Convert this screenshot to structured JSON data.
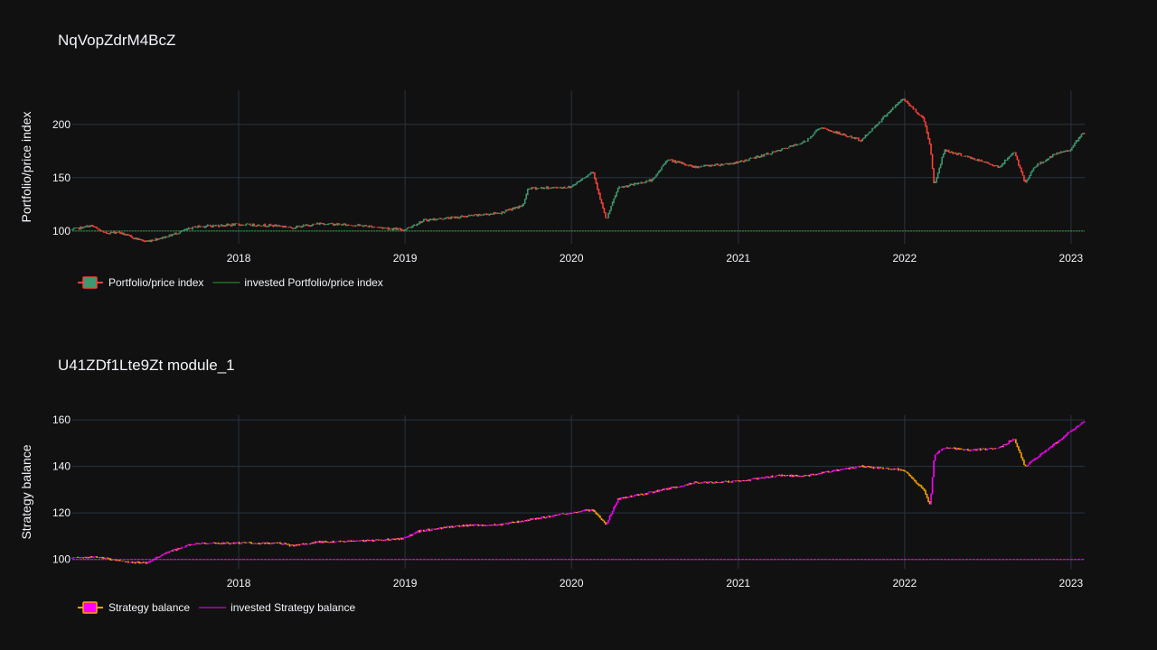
{
  "charts": [
    {
      "title": "NqVopZdrM4BcZ",
      "ylabel": "Portfolio/price index",
      "legend": [
        "Portfolio/price index",
        "invested Portfolio/price index"
      ],
      "colors": {
        "up": "#3d9970",
        "down": "#ff4136",
        "invested": "#2ca02c"
      }
    },
    {
      "title": "U41ZDf1Lte9Zt module_1",
      "ylabel": "Strategy balance",
      "legend": [
        "Strategy balance",
        "invested Strategy balance"
      ],
      "colors": {
        "up": "#ff00ff",
        "down": "#ffa500",
        "invested": "#ff00ff"
      }
    }
  ],
  "chart_data": [
    {
      "type": "candlestick",
      "title": "NqVopZdrM4BcZ",
      "ylabel": "Portfolio/price index",
      "xlim": [
        "2017-01-01",
        "2023-01-31"
      ],
      "ylim": [
        88,
        232
      ],
      "x_ticks": [
        "2018",
        "2019",
        "2020",
        "2021",
        "2022",
        "2023"
      ],
      "y_ticks": [
        100,
        150,
        200
      ],
      "grid": true,
      "legend_position": "bottom-left",
      "series": [
        {
          "name": "Portfolio/price index",
          "x": [
            "2017-01-01",
            "2017-02-15",
            "2017-03-15",
            "2017-04-15",
            "2017-05-15",
            "2017-06-15",
            "2017-08-01",
            "2017-10-01",
            "2018-01-01",
            "2018-04-01",
            "2018-05-01",
            "2018-07-01",
            "2018-10-01",
            "2019-01-01",
            "2019-02-15",
            "2019-05-01",
            "2019-08-01",
            "2019-09-20",
            "2019-10-01",
            "2020-01-01",
            "2020-02-20",
            "2020-03-20",
            "2020-04-15",
            "2020-07-01",
            "2020-08-01",
            "2020-10-01",
            "2021-01-01",
            "2021-04-01",
            "2021-06-01",
            "2021-07-01",
            "2021-10-01",
            "2021-12-01",
            "2022-01-01",
            "2022-02-15",
            "2022-03-01",
            "2022-03-10",
            "2022-04-01",
            "2022-06-01",
            "2022-08-01",
            "2022-09-01",
            "2022-09-25",
            "2022-10-15",
            "2022-12-01",
            "2023-01-01",
            "2023-01-31"
          ],
          "y": [
            101,
            105,
            98,
            99,
            94,
            90,
            95,
            104,
            106,
            105,
            103,
            107,
            105,
            101,
            110,
            113,
            117,
            124,
            140,
            141,
            156,
            110,
            140,
            148,
            167,
            160,
            164,
            175,
            184,
            197,
            185,
            212,
            224,
            205,
            180,
            142,
            176,
            168,
            160,
            175,
            145,
            160,
            172,
            176,
            192
          ]
        },
        {
          "name": "invested Portfolio/price index",
          "x": [
            "2017-01-01",
            "2023-01-31"
          ],
          "y": [
            100,
            100
          ]
        }
      ]
    },
    {
      "type": "candlestick",
      "title": "U41ZDf1Lte9Zt module_1",
      "ylabel": "Strategy balance",
      "xlim": [
        "2017-01-01",
        "2023-01-31"
      ],
      "ylim": [
        96,
        162
      ],
      "x_ticks": [
        "2018",
        "2019",
        "2020",
        "2021",
        "2022",
        "2023"
      ],
      "y_ticks": [
        100,
        120,
        140,
        160
      ],
      "grid": true,
      "legend_position": "bottom-left",
      "series": [
        {
          "name": "Strategy balance",
          "x": [
            "2017-01-01",
            "2017-03-01",
            "2017-05-01",
            "2017-06-15",
            "2017-08-01",
            "2017-10-01",
            "2018-01-01",
            "2018-04-01",
            "2018-05-01",
            "2018-07-01",
            "2018-10-01",
            "2019-01-01",
            "2019-02-01",
            "2019-05-01",
            "2019-08-01",
            "2019-10-01",
            "2020-01-01",
            "2020-02-20",
            "2020-03-20",
            "2020-04-15",
            "2020-07-01",
            "2020-10-01",
            "2021-01-01",
            "2021-04-01",
            "2021-06-01",
            "2021-10-01",
            "2021-12-01",
            "2022-01-01",
            "2022-02-15",
            "2022-03-01",
            "2022-03-10",
            "2022-04-01",
            "2022-06-01",
            "2022-08-01",
            "2022-09-01",
            "2022-09-25",
            "2022-10-15",
            "2022-12-01",
            "2023-01-01",
            "2023-01-31"
          ],
          "y": [
            100.5,
            101,
            99,
            98.5,
            103,
            107,
            107,
            107,
            106,
            107.5,
            108,
            109,
            112,
            114.5,
            115,
            117,
            120,
            121.5,
            115,
            126,
            129,
            133,
            133.5,
            136,
            136,
            140,
            139,
            138.5,
            130,
            123,
            145,
            148,
            147,
            148,
            152,
            140,
            143,
            150,
            155,
            159
          ]
        },
        {
          "name": "invested Strategy balance",
          "x": [
            "2017-01-01",
            "2023-01-31"
          ],
          "y": [
            100,
            100
          ]
        }
      ]
    }
  ]
}
